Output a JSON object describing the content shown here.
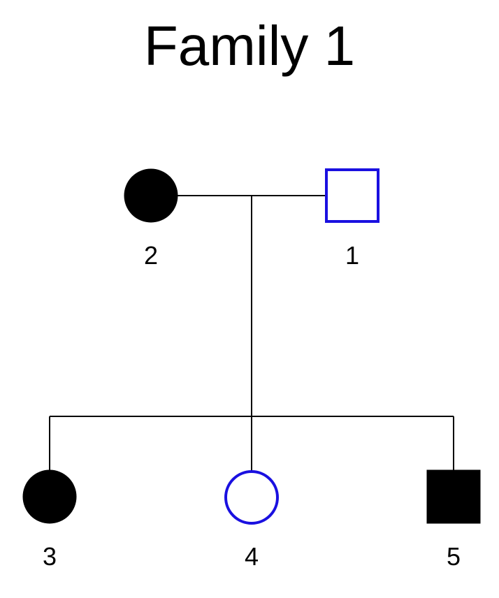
{
  "title": "Family 1",
  "colors": {
    "affected_fill": "#000000",
    "unaffected_outline": "#1a10e0",
    "line": "#000000",
    "background": "#ffffff"
  },
  "individuals": [
    {
      "id": "2",
      "sex": "female",
      "affected": true,
      "generation": 1
    },
    {
      "id": "1",
      "sex": "male",
      "affected": false,
      "generation": 1
    },
    {
      "id": "3",
      "sex": "female",
      "affected": true,
      "generation": 2
    },
    {
      "id": "4",
      "sex": "female",
      "affected": false,
      "generation": 2
    },
    {
      "id": "5",
      "sex": "male",
      "affected": true,
      "generation": 2
    }
  ],
  "relationships": {
    "couple": [
      "2",
      "1"
    ],
    "children": [
      "3",
      "4",
      "5"
    ]
  }
}
